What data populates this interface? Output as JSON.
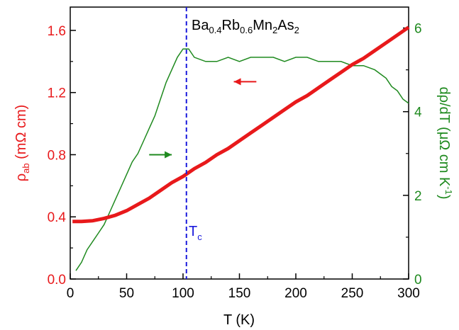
{
  "chart_data": {
    "type": "line",
    "title": "",
    "xlabel": "T (K)",
    "xlim": [
      0,
      300
    ],
    "x_ticks": [
      "0",
      "50",
      "100",
      "150",
      "200",
      "250",
      "300"
    ],
    "y_left": {
      "label_parts": [
        "ρ",
        "ab",
        " (mΩ cm)"
      ],
      "ylim": [
        0,
        1.75
      ],
      "ticks": [
        "0.0",
        "0.4",
        "0.8",
        "1.2",
        "1.6"
      ],
      "color": "#e8191b"
    },
    "y_right": {
      "label_parts": [
        "dρ/dT (μΩ cm K",
        "-1",
        ")"
      ],
      "ylim": [
        0,
        6.5
      ],
      "ticks": [
        "0",
        "2",
        "4",
        "6"
      ],
      "color": "#1f8a1f"
    },
    "series": [
      {
        "axis": "left",
        "color": "#e8191b",
        "x": [
          2,
          10,
          20,
          30,
          40,
          50,
          60,
          70,
          80,
          90,
          100,
          110,
          120,
          130,
          140,
          150,
          160,
          170,
          180,
          190,
          200,
          210,
          220,
          230,
          240,
          250,
          260,
          270,
          280,
          290,
          300
        ],
        "y": [
          0.37,
          0.37,
          0.375,
          0.39,
          0.41,
          0.44,
          0.48,
          0.52,
          0.57,
          0.62,
          0.66,
          0.71,
          0.75,
          0.8,
          0.84,
          0.89,
          0.94,
          0.99,
          1.04,
          1.09,
          1.14,
          1.18,
          1.23,
          1.28,
          1.33,
          1.38,
          1.42,
          1.47,
          1.52,
          1.57,
          1.62
        ]
      },
      {
        "axis": "right",
        "color": "#1f8a1f",
        "x": [
          5,
          10,
          15,
          20,
          25,
          30,
          35,
          40,
          45,
          50,
          55,
          60,
          65,
          70,
          75,
          80,
          85,
          90,
          95,
          100,
          105,
          110,
          120,
          130,
          140,
          150,
          160,
          170,
          180,
          190,
          200,
          210,
          220,
          230,
          240,
          250,
          260,
          270,
          280,
          285,
          290,
          295,
          300
        ],
        "y": [
          0.2,
          0.4,
          0.7,
          0.9,
          1.1,
          1.3,
          1.6,
          1.9,
          2.2,
          2.5,
          2.8,
          3.0,
          3.3,
          3.6,
          3.9,
          4.3,
          4.7,
          5.0,
          5.3,
          5.5,
          5.5,
          5.3,
          5.2,
          5.2,
          5.3,
          5.2,
          5.3,
          5.3,
          5.3,
          5.2,
          5.3,
          5.3,
          5.2,
          5.2,
          5.2,
          5.1,
          5.1,
          5.0,
          4.8,
          4.6,
          4.5,
          4.3,
          4.2
        ]
      }
    ],
    "annotations": {
      "compound": [
        "Ba",
        "0.4",
        "Rb",
        "0.6",
        "Mn",
        "2",
        "As",
        "2"
      ],
      "tc_label": [
        "T",
        "c"
      ],
      "tc_x": 103,
      "tc_color": "#1a1adc",
      "arrow_left": {
        "from": [
          165,
          1.27
        ],
        "to": [
          145,
          1.27
        ],
        "color": "#e8191b"
      },
      "arrow_right": {
        "from": [
          70,
          0.8
        ],
        "to": [
          90,
          0.8
        ],
        "color": "#1f8a1f"
      }
    }
  }
}
